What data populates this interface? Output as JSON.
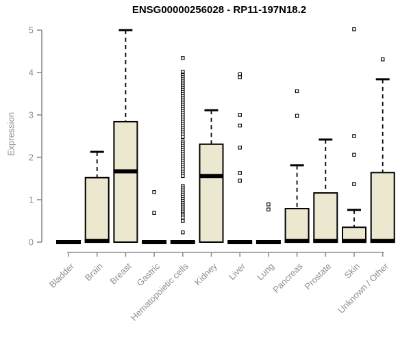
{
  "chart_data": {
    "type": "boxplot",
    "title": "ENSG00000256028 - RP11-197N18.2",
    "ylabel": "Expression",
    "xlabel": "",
    "ylim": [
      0,
      5
    ],
    "yticks": [
      0,
      1,
      2,
      3,
      4,
      5
    ],
    "grid": false,
    "legend": "none",
    "categories": [
      "Bladder",
      "Brain",
      "Breast",
      "Gastric",
      "Hematopoietic cells",
      "Kidney",
      "Liver",
      "Lung",
      "Pancreas",
      "Prostate",
      "Skin",
      "Unknown / Other"
    ],
    "series": [
      {
        "name": "Bladder",
        "median": 0,
        "q1": 0,
        "q3": 0,
        "whisker_low": 0,
        "whisker_high": 0,
        "outliers": []
      },
      {
        "name": "Brain",
        "median": 0.03,
        "q1": 0,
        "q3": 1.52,
        "whisker_low": 0,
        "whisker_high": 2.13,
        "outliers": []
      },
      {
        "name": "Breast",
        "median": 1.67,
        "q1": 0,
        "q3": 2.84,
        "whisker_low": 0,
        "whisker_high": 5.0,
        "outliers": []
      },
      {
        "name": "Gastric",
        "median": 0,
        "q1": 0,
        "q3": 0,
        "whisker_low": 0,
        "whisker_high": 0,
        "outliers": [
          1.18,
          0.69
        ]
      },
      {
        "name": "Hematopoietic cells",
        "median": 0,
        "q1": 0,
        "q3": 0,
        "whisker_low": 0,
        "whisker_high": 0,
        "outliers": [
          4.34,
          4.02,
          3.94,
          3.89,
          3.84,
          3.79,
          3.74,
          3.69,
          3.64,
          3.59,
          3.54,
          3.49,
          3.44,
          3.39,
          3.34,
          3.29,
          3.24,
          3.19,
          3.14,
          3.09,
          3.04,
          2.99,
          2.94,
          2.89,
          2.84,
          2.79,
          2.74,
          2.69,
          2.64,
          2.59,
          2.54,
          2.48,
          2.37,
          2.32,
          2.27,
          2.22,
          2.17,
          2.12,
          2.07,
          2.02,
          1.97,
          1.92,
          1.87,
          1.82,
          1.77,
          1.72,
          1.66,
          1.61,
          1.56,
          1.32,
          1.27,
          1.22,
          1.17,
          1.12,
          1.07,
          1.02,
          0.97,
          0.92,
          0.87,
          0.82,
          0.77,
          0.72,
          0.67,
          0.63,
          0.58,
          0.5,
          0.23
        ]
      },
      {
        "name": "Kidney",
        "median": 1.56,
        "q1": 0,
        "q3": 2.31,
        "whisker_low": 0,
        "whisker_high": 3.11,
        "outliers": []
      },
      {
        "name": "Liver",
        "median": 0,
        "q1": 0,
        "q3": 0,
        "whisker_low": 0,
        "whisker_high": 0,
        "outliers": [
          3.96,
          3.89,
          3.0,
          2.75,
          2.23,
          1.63,
          1.45
        ]
      },
      {
        "name": "Lung",
        "median": 0,
        "q1": 0,
        "q3": 0,
        "whisker_low": 0,
        "whisker_high": 0,
        "outliers": [
          0.89,
          0.77
        ]
      },
      {
        "name": "Pancreas",
        "median": 0.03,
        "q1": 0,
        "q3": 0.79,
        "whisker_low": 0,
        "whisker_high": 1.81,
        "outliers": [
          3.56,
          2.98
        ]
      },
      {
        "name": "Prostate",
        "median": 0.03,
        "q1": 0,
        "q3": 1.16,
        "whisker_low": 0,
        "whisker_high": 2.42,
        "outliers": []
      },
      {
        "name": "Skin",
        "median": 0.03,
        "q1": 0,
        "q3": 0.35,
        "whisker_low": 0,
        "whisker_high": 0.76,
        "outliers": [
          5.02,
          2.5,
          2.06,
          1.37
        ]
      },
      {
        "name": "Unknown / Other",
        "median": 0.03,
        "q1": 0,
        "q3": 1.64,
        "whisker_low": 0,
        "whisker_high": 3.84,
        "outliers": [
          4.31
        ]
      }
    ]
  },
  "colors": {
    "background": "#ffffff",
    "box_fill": "#ece7cf",
    "box_border": "#000000",
    "median": "#000000",
    "whisker": "#000000",
    "outlier_stroke": "#000000",
    "outlier_fill": "#ffffff",
    "axis": "#8e8e8e",
    "tick_text": "#8e8e8e",
    "title_text": "#000000"
  }
}
